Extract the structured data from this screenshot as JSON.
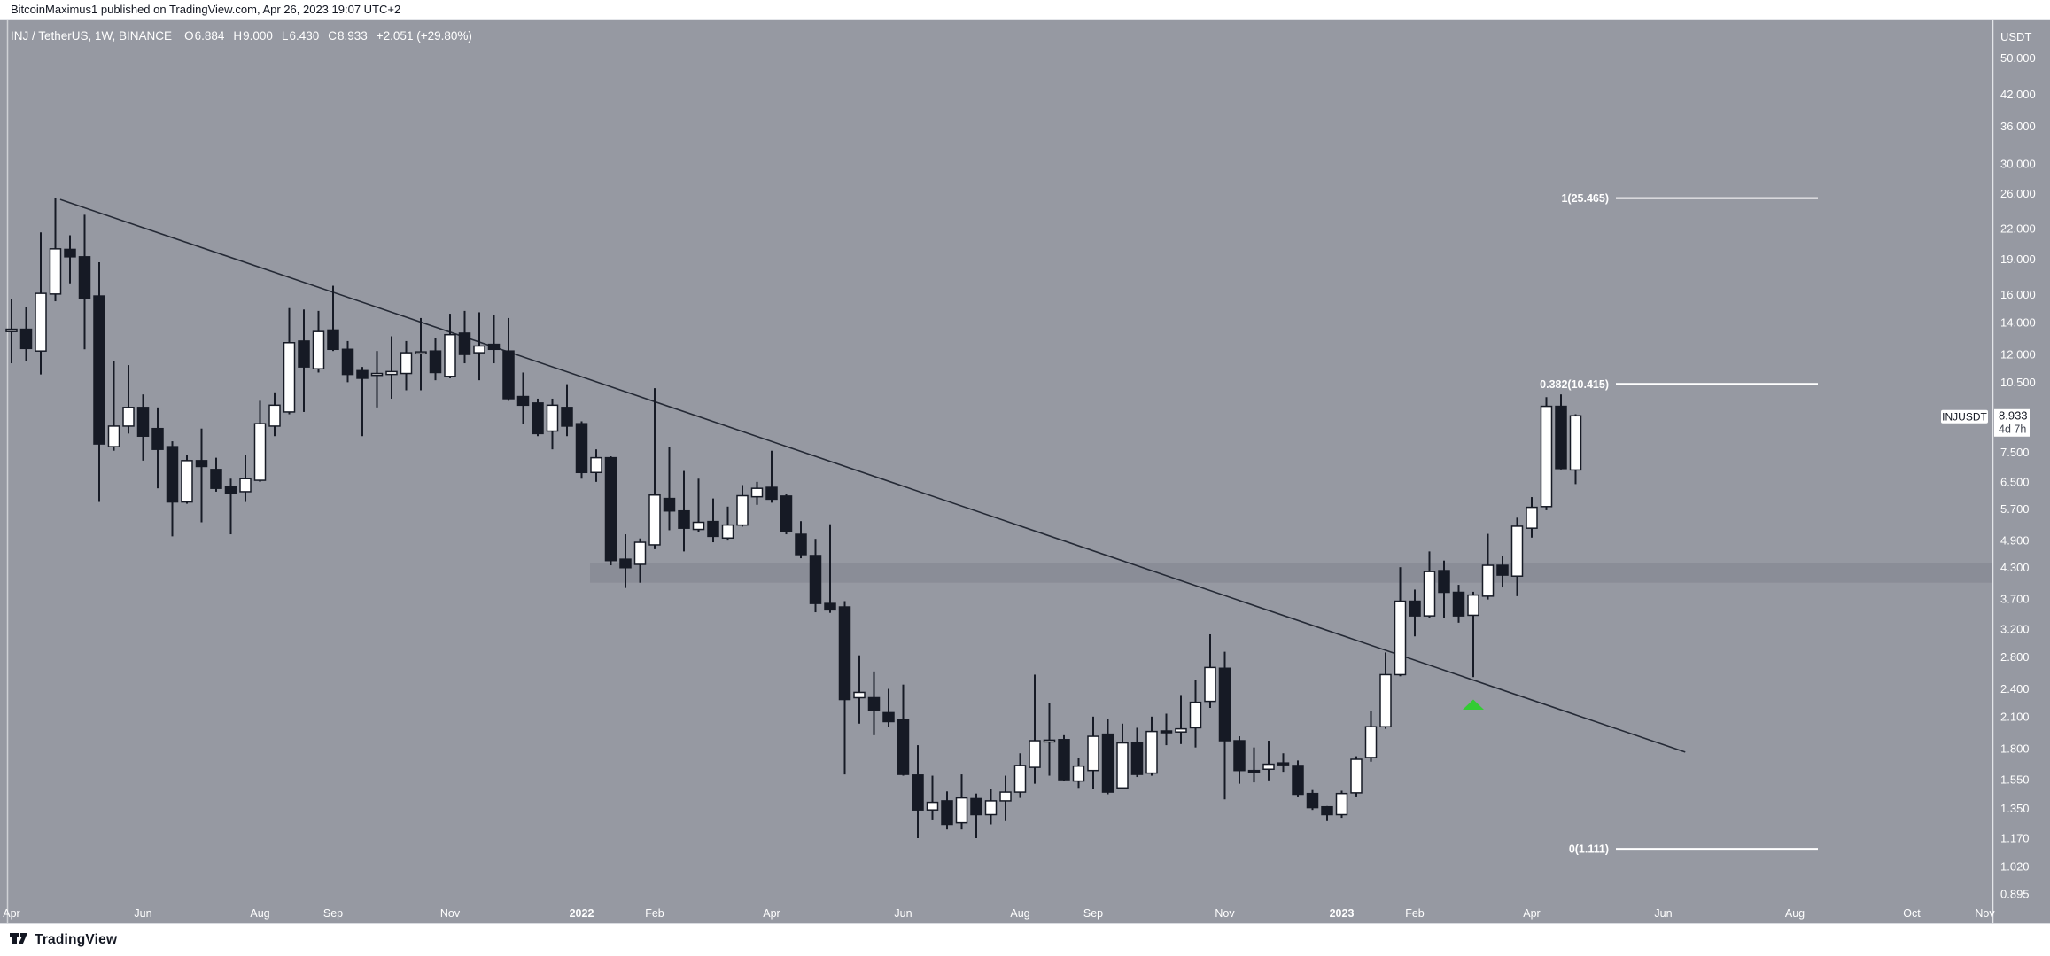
{
  "header": {
    "text": "BitcoinMaximus1 published on TradingView.com, Apr 26, 2023 19:07 UTC+2"
  },
  "footer": {
    "brand": "TradingView"
  },
  "legend": {
    "symbol": "INJ / TetherUS, 1W, BINANCE",
    "o_label": "O",
    "o": "6.884",
    "h_label": "H",
    "h": "9.000",
    "l_label": "L",
    "l": "6.430",
    "c_label": "C",
    "c": "8.933",
    "change": "+2.051 (+29.80%)"
  },
  "price_scale": {
    "currency_label": "USDT",
    "ticks": [
      {
        "label": "50.000",
        "price": 50
      },
      {
        "label": "42.000",
        "price": 42
      },
      {
        "label": "36.000",
        "price": 36
      },
      {
        "label": "30.000",
        "price": 30
      },
      {
        "label": "26.000",
        "price": 26
      },
      {
        "label": "22.000",
        "price": 22
      },
      {
        "label": "19.000",
        "price": 19
      },
      {
        "label": "16.000",
        "price": 16
      },
      {
        "label": "14.000",
        "price": 14
      },
      {
        "label": "12.000",
        "price": 12
      },
      {
        "label": "10.500",
        "price": 10.5
      },
      {
        "label": "7.500",
        "price": 7.5
      },
      {
        "label": "6.500",
        "price": 6.5
      },
      {
        "label": "5.700",
        "price": 5.7
      },
      {
        "label": "4.900",
        "price": 4.9
      },
      {
        "label": "4.300",
        "price": 4.3
      },
      {
        "label": "3.700",
        "price": 3.7
      },
      {
        "label": "3.200",
        "price": 3.2
      },
      {
        "label": "2.800",
        "price": 2.8
      },
      {
        "label": "2.400",
        "price": 2.4
      },
      {
        "label": "2.100",
        "price": 2.1
      },
      {
        "label": "1.800",
        "price": 1.8
      },
      {
        "label": "1.550",
        "price": 1.55
      },
      {
        "label": "1.350",
        "price": 1.35
      },
      {
        "label": "1.170",
        "price": 1.17
      },
      {
        "label": "1.020",
        "price": 1.02
      },
      {
        "label": "0.895",
        "price": 0.895
      }
    ],
    "price_label": {
      "symbol_tag": "INJUSDT",
      "price": "8.933",
      "countdown": "4d 7h",
      "price_value": 8.933
    }
  },
  "time_scale": {
    "labels": [
      {
        "label": "Apr",
        "week": 0,
        "major": false
      },
      {
        "label": "Jun",
        "week": 9,
        "major": false
      },
      {
        "label": "Aug",
        "week": 17,
        "major": false
      },
      {
        "label": "Sep",
        "week": 22,
        "major": false
      },
      {
        "label": "Nov",
        "week": 30,
        "major": false
      },
      {
        "label": "2022",
        "week": 39,
        "major": true
      },
      {
        "label": "Feb",
        "week": 44,
        "major": false
      },
      {
        "label": "Apr",
        "week": 52,
        "major": false
      },
      {
        "label": "Jun",
        "week": 61,
        "major": false
      },
      {
        "label": "Aug",
        "week": 69,
        "major": false
      },
      {
        "label": "Sep",
        "week": 74,
        "major": false
      },
      {
        "label": "Nov",
        "week": 83,
        "major": false
      },
      {
        "label": "2023",
        "week": 91,
        "major": true
      },
      {
        "label": "Feb",
        "week": 96,
        "major": false
      },
      {
        "label": "Apr",
        "week": 104,
        "major": false
      },
      {
        "label": "Jun",
        "week": 113,
        "major": false
      },
      {
        "label": "Aug",
        "week": 122,
        "major": false
      },
      {
        "label": "Oct",
        "week": 130,
        "major": false
      },
      {
        "label": "Nov",
        "week": 135,
        "major": false
      }
    ]
  },
  "chart_data": {
    "type": "candlestick",
    "symbol": "INJ / TetherUS",
    "interval": "1W",
    "exchange": "BINANCE",
    "scale": "logarithmic",
    "ylim_log": [
      0.777,
      59.9
    ],
    "last_bar": {
      "open": 6.884,
      "high": 9.0,
      "low": 6.43,
      "close": 8.933,
      "change": "+2.051 (+29.80%)"
    },
    "candles_ohlc": [
      [
        13.4,
        15.7,
        11.5,
        13.55
      ],
      [
        13.55,
        15.1,
        11.6,
        12.35
      ],
      [
        12.2,
        21.6,
        10.9,
        16.1
      ],
      [
        16.05,
        25.465,
        15.5,
        19.95
      ],
      [
        19.9,
        21.3,
        16.9,
        19.2
      ],
      [
        19.2,
        23.5,
        12.3,
        15.75
      ],
      [
        15.9,
        18.7,
        5.9,
        7.8
      ],
      [
        7.7,
        11.6,
        7.55,
        8.5
      ],
      [
        8.5,
        11.4,
        8.2,
        9.3
      ],
      [
        9.3,
        9.9,
        7.2,
        8.1
      ],
      [
        8.4,
        9.3,
        6.3,
        7.6
      ],
      [
        7.7,
        7.9,
        5.0,
        5.9
      ],
      [
        5.9,
        7.4,
        5.85,
        7.2
      ],
      [
        7.2,
        8.4,
        5.35,
        7.0
      ],
      [
        6.9,
        7.3,
        6.2,
        6.3
      ],
      [
        6.35,
        6.6,
        5.05,
        6.15
      ],
      [
        6.2,
        7.4,
        5.9,
        6.6
      ],
      [
        6.55,
        9.6,
        6.5,
        8.6
      ],
      [
        8.5,
        10.0,
        8.1,
        9.4
      ],
      [
        9.1,
        15.0,
        9.0,
        12.7
      ],
      [
        12.8,
        14.9,
        9.1,
        11.3
      ],
      [
        11.2,
        14.8,
        11.0,
        13.4
      ],
      [
        13.5,
        16.7,
        12.2,
        12.3
      ],
      [
        12.3,
        12.8,
        10.5,
        10.9
      ],
      [
        11.1,
        11.3,
        8.1,
        10.7
      ],
      [
        10.85,
        12.2,
        9.3,
        10.95
      ],
      [
        10.9,
        13.1,
        9.7,
        11.05
      ],
      [
        10.95,
        12.8,
        10.1,
        12.1
      ],
      [
        12.1,
        14.3,
        10.1,
        12.15
      ],
      [
        12.2,
        13.0,
        10.6,
        11.0
      ],
      [
        10.8,
        14.6,
        10.7,
        13.2
      ],
      [
        13.3,
        14.8,
        11.5,
        12.0
      ],
      [
        12.1,
        14.7,
        10.6,
        12.5
      ],
      [
        12.6,
        14.5,
        11.5,
        12.3
      ],
      [
        12.2,
        14.3,
        9.6,
        9.7
      ],
      [
        9.8,
        11.0,
        8.6,
        9.4
      ],
      [
        9.5,
        9.7,
        8.1,
        8.2
      ],
      [
        8.3,
        9.7,
        7.6,
        9.4
      ],
      [
        9.3,
        10.4,
        8.1,
        8.5
      ],
      [
        8.6,
        8.7,
        6.6,
        6.8
      ],
      [
        6.8,
        7.6,
        6.5,
        7.3
      ],
      [
        7.3,
        7.35,
        4.35,
        4.45
      ],
      [
        4.48,
        5.05,
        3.9,
        4.3
      ],
      [
        4.37,
        4.95,
        4.0,
        4.86
      ],
      [
        4.8,
        10.2,
        4.7,
        6.1
      ],
      [
        6.0,
        7.7,
        5.15,
        5.65
      ],
      [
        5.65,
        6.85,
        4.65,
        5.2
      ],
      [
        5.17,
        6.6,
        5.1,
        5.35
      ],
      [
        5.37,
        6.0,
        4.86,
        5.0
      ],
      [
        4.96,
        5.77,
        4.9,
        5.28
      ],
      [
        5.28,
        6.4,
        5.24,
        6.08
      ],
      [
        6.05,
        6.5,
        5.82,
        6.3
      ],
      [
        6.33,
        7.55,
        5.88,
        5.98
      ],
      [
        6.07,
        6.12,
        5.05,
        5.12
      ],
      [
        5.05,
        5.38,
        4.5,
        4.58
      ],
      [
        4.56,
        4.94,
        3.47,
        3.62
      ],
      [
        3.62,
        5.3,
        3.46,
        3.51
      ],
      [
        3.56,
        3.66,
        1.59,
        2.28
      ],
      [
        2.3,
        2.82,
        2.03,
        2.36
      ],
      [
        2.3,
        2.61,
        1.92,
        2.16
      ],
      [
        2.14,
        2.4,
        2.0,
        2.05
      ],
      [
        2.07,
        2.45,
        1.58,
        1.59
      ],
      [
        1.585,
        1.83,
        1.17,
        1.34
      ],
      [
        1.34,
        1.58,
        1.28,
        1.39
      ],
      [
        1.4,
        1.465,
        1.22,
        1.25
      ],
      [
        1.26,
        1.59,
        1.22,
        1.42
      ],
      [
        1.415,
        1.45,
        1.17,
        1.31
      ],
      [
        1.31,
        1.485,
        1.25,
        1.4
      ],
      [
        1.4,
        1.58,
        1.27,
        1.46
      ],
      [
        1.46,
        1.76,
        1.42,
        1.66
      ],
      [
        1.645,
        2.57,
        1.52,
        1.87
      ],
      [
        1.87,
        2.24,
        1.58,
        1.875
      ],
      [
        1.88,
        1.92,
        1.54,
        1.55
      ],
      [
        1.54,
        1.72,
        1.49,
        1.655
      ],
      [
        1.62,
        2.1,
        1.48,
        1.91
      ],
      [
        1.93,
        2.08,
        1.445,
        1.46
      ],
      [
        1.49,
        2.03,
        1.48,
        1.85
      ],
      [
        1.855,
        1.99,
        1.57,
        1.59
      ],
      [
        1.6,
        2.1,
        1.58,
        1.955
      ],
      [
        1.96,
        2.13,
        1.83,
        1.95
      ],
      [
        1.95,
        2.33,
        1.84,
        1.98
      ],
      [
        1.99,
        2.51,
        1.81,
        2.25
      ],
      [
        2.26,
        3.12,
        2.19,
        2.66
      ],
      [
        2.65,
        2.87,
        1.41,
        1.87
      ],
      [
        1.87,
        1.91,
        1.52,
        1.62
      ],
      [
        1.62,
        1.81,
        1.53,
        1.615
      ],
      [
        1.63,
        1.87,
        1.545,
        1.67
      ],
      [
        1.68,
        1.76,
        1.61,
        1.675
      ],
      [
        1.66,
        1.7,
        1.43,
        1.445
      ],
      [
        1.45,
        1.475,
        1.34,
        1.355
      ],
      [
        1.36,
        1.365,
        1.27,
        1.31
      ],
      [
        1.31,
        1.47,
        1.29,
        1.45
      ],
      [
        1.455,
        1.735,
        1.43,
        1.71
      ],
      [
        1.725,
        2.16,
        1.69,
        2.0
      ],
      [
        2.0,
        2.86,
        1.98,
        2.57
      ],
      [
        2.57,
        4.31,
        2.55,
        3.66
      ],
      [
        3.66,
        3.87,
        3.09,
        3.41
      ],
      [
        3.41,
        4.65,
        3.37,
        4.22
      ],
      [
        4.24,
        4.45,
        3.37,
        3.82
      ],
      [
        3.82,
        3.96,
        3.3,
        3.41
      ],
      [
        3.42,
        3.83,
        2.54,
        3.77
      ],
      [
        3.75,
        5.06,
        3.69,
        4.35
      ],
      [
        4.35,
        4.55,
        3.91,
        4.15
      ],
      [
        4.13,
        5.47,
        3.75,
        5.25
      ],
      [
        5.2,
        6.04,
        4.97,
        5.75
      ],
      [
        5.77,
        9.77,
        5.67,
        9.35
      ],
      [
        9.35,
        9.9,
        6.9,
        6.93
      ],
      [
        6.884,
        9.0,
        6.43,
        8.933
      ]
    ],
    "fib_levels": [
      {
        "label": "1(25.465)",
        "price": 25.465
      },
      {
        "label": "0.382(10.415)",
        "price": 10.415
      },
      {
        "label": "0(1.111)",
        "price": 1.111
      }
    ],
    "trendline": {
      "from": {
        "week": 3.33,
        "price": 25.3
      },
      "to": {
        "week": 114.5,
        "price": 1.77
      }
    },
    "support_zone": {
      "from_week": 40,
      "price_top": 4.39,
      "price_bottom": 4.0
    },
    "marker": {
      "week": 100,
      "price": 2.28,
      "shape": "triangle-up"
    }
  },
  "colors": {
    "background": "#9699a2",
    "zone": "#8a8d97",
    "bull": "#ffffff",
    "bear": "#161a25",
    "outline": "#161a25",
    "fib": "#ffffff",
    "trendline": "#252a36",
    "marker_green": "#33cc33",
    "axis_text": "#ffffff",
    "dark_text": "#131722",
    "countdown_text": "#3f434e",
    "axis_line": "#eceef1"
  }
}
